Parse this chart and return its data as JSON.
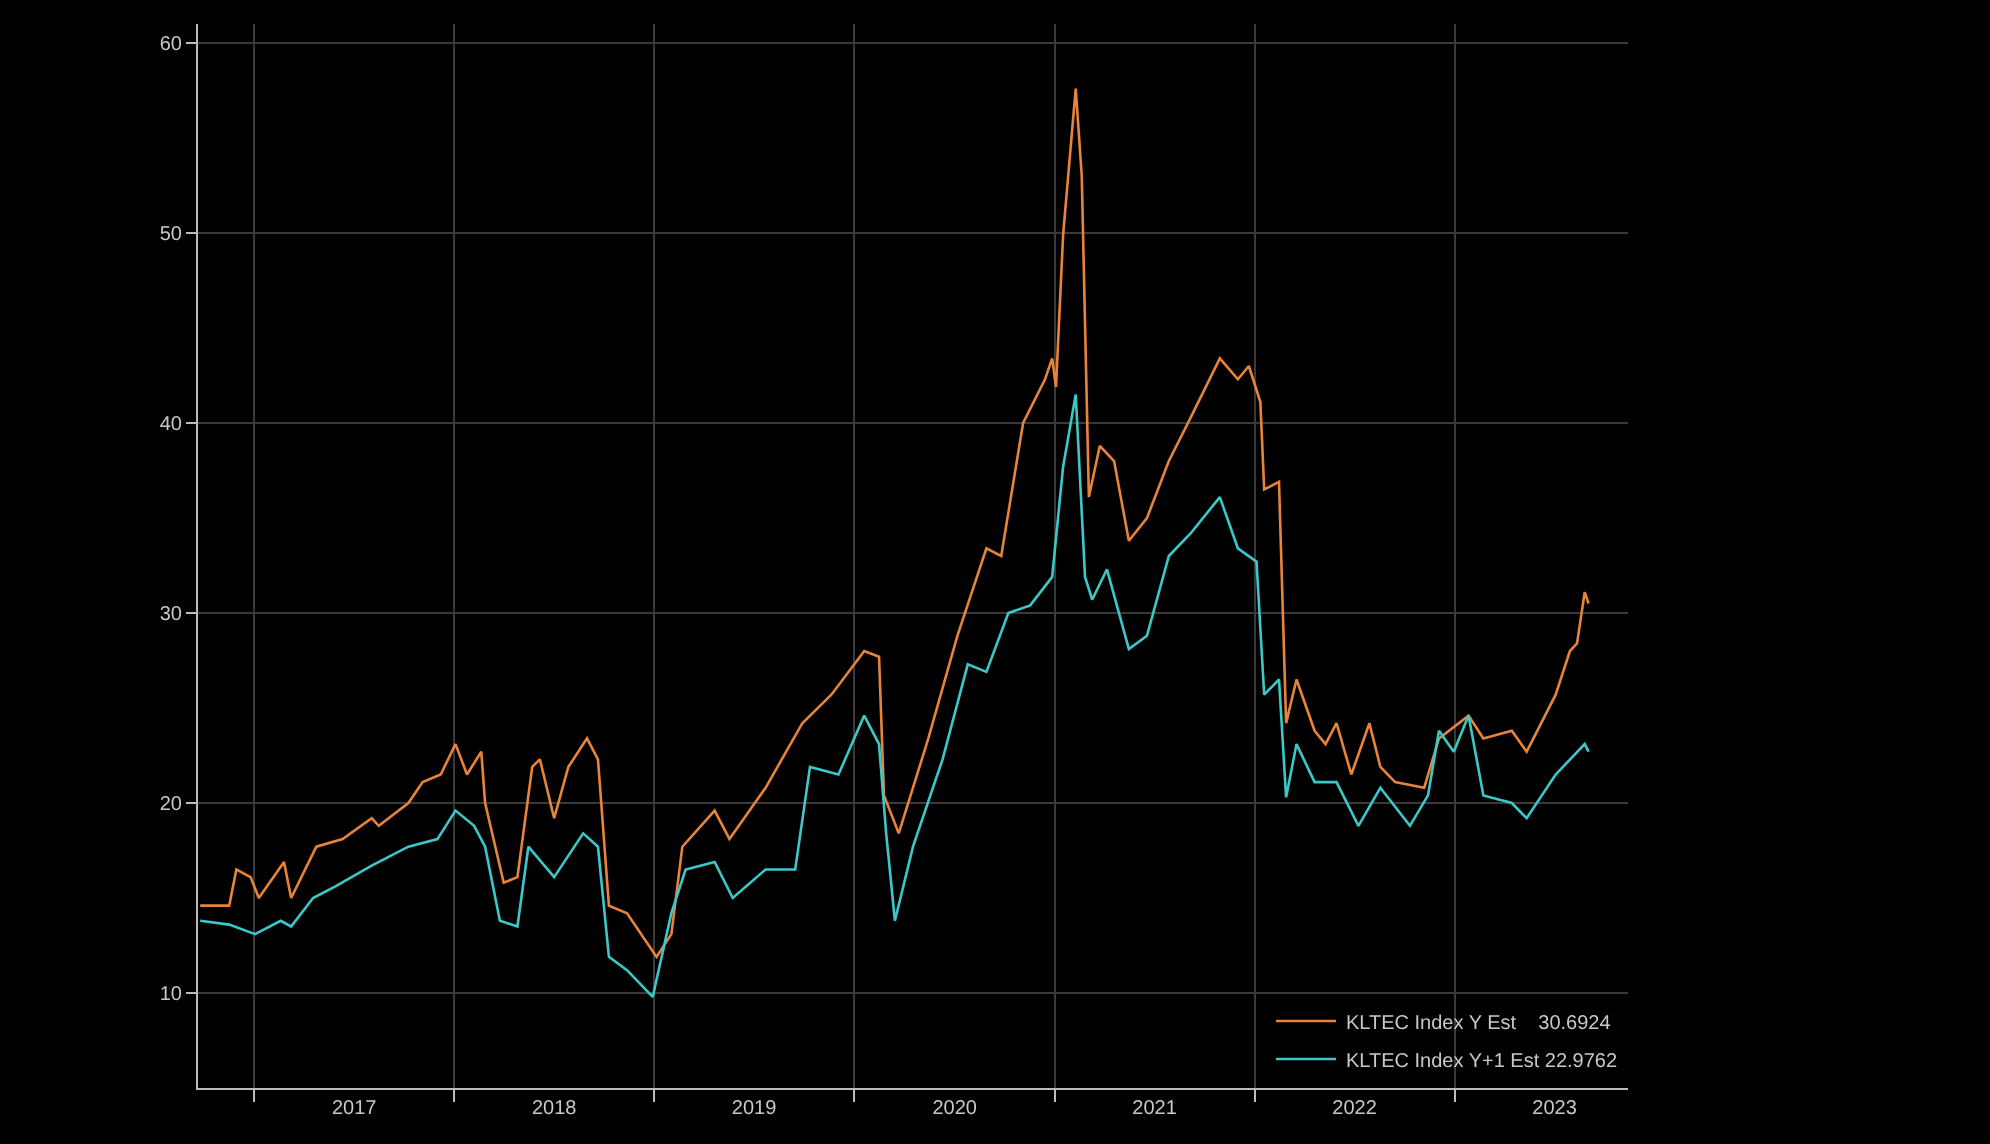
{
  "chart_data": {
    "type": "line",
    "xlim": [
      "2016-09-20",
      "2023-11-13"
    ],
    "ylim": [
      5,
      61
    ],
    "xticks": [
      {
        "value": "2017-01-01",
        "label": null
      },
      {
        "value": "2017-07-02",
        "label": "2017"
      },
      {
        "value": "2018-01-01",
        "label": null
      },
      {
        "value": "2018-07-02",
        "label": "2018"
      },
      {
        "value": "2019-01-01",
        "label": null
      },
      {
        "value": "2019-07-02",
        "label": "2019"
      },
      {
        "value": "2020-01-01",
        "label": null
      },
      {
        "value": "2020-07-02",
        "label": "2020"
      },
      {
        "value": "2021-01-01",
        "label": null
      },
      {
        "value": "2021-07-02",
        "label": "2021"
      },
      {
        "value": "2022-01-01",
        "label": null
      },
      {
        "value": "2022-07-02",
        "label": "2022"
      },
      {
        "value": "2023-01-01",
        "label": null
      },
      {
        "value": "2023-07-02",
        "label": "2023"
      }
    ],
    "yticks": [
      10,
      20,
      30,
      40,
      50,
      60
    ],
    "grid": true,
    "legend": "bottom right",
    "marker": "none",
    "line_style": "solid",
    "series": [
      {
        "name": "KLTEC Index Y Est    30.6924",
        "color": "#e8843a",
        "x": [
          "2016-09-24",
          "2016-11-16",
          "2016-11-29",
          "2016-12-25",
          "2017-01-09",
          "2017-02-24",
          "2017-03-09",
          "2017-04-24",
          "2017-06-11",
          "2017-08-03",
          "2017-08-16",
          "2017-10-09",
          "2017-11-04",
          "2017-12-07",
          "2018-01-03",
          "2018-01-24",
          "2018-02-19",
          "2018-02-26",
          "2018-04-01",
          "2018-04-26",
          "2018-05-23",
          "2018-06-06",
          "2018-07-02",
          "2018-07-28",
          "2018-08-31",
          "2018-09-20",
          "2018-10-10",
          "2018-11-12",
          "2019-01-05",
          "2019-02-01",
          "2019-02-21",
          "2019-04-21",
          "2019-05-18",
          "2019-07-23",
          "2019-09-28",
          "2019-11-20",
          "2020-01-19",
          "2020-02-15",
          "2020-02-24",
          "2020-03-22",
          "2020-05-15",
          "2020-07-07",
          "2020-08-29",
          "2020-09-25",
          "2020-11-04",
          "2020-12-14",
          "2020-12-27",
          "2021-01-03",
          "2021-01-16",
          "2021-02-08",
          "2021-02-19",
          "2021-03-04",
          "2021-03-24",
          "2021-04-19",
          "2021-05-16",
          "2021-06-18",
          "2021-07-28",
          "2021-09-06",
          "2021-10-29",
          "2021-12-01",
          "2021-12-21",
          "2022-01-11",
          "2022-01-18",
          "2022-02-14",
          "2022-02-27",
          "2022-03-18",
          "2022-04-20",
          "2022-05-10",
          "2022-05-30",
          "2022-06-26",
          "2022-07-29",
          "2022-08-18",
          "2022-09-14",
          "2022-11-06",
          "2022-12-03",
          "2023-01-26",
          "2023-02-22",
          "2023-04-15",
          "2023-05-12",
          "2023-07-04",
          "2023-07-30",
          "2023-08-12",
          "2023-08-26",
          "2023-09-02"
        ],
        "values": [
          14.6,
          14.6,
          16.5,
          16.1,
          15.0,
          16.9,
          15.0,
          17.7,
          18.1,
          19.2,
          18.8,
          20.0,
          21.1,
          21.5,
          23.1,
          21.5,
          22.7,
          20.0,
          15.8,
          16.1,
          21.9,
          22.3,
          19.2,
          21.9,
          23.4,
          22.3,
          14.6,
          14.2,
          11.9,
          13.1,
          17.7,
          19.6,
          18.1,
          20.8,
          24.2,
          25.7,
          28.0,
          27.7,
          20.4,
          18.4,
          23.4,
          28.8,
          33.4,
          33.0,
          40.0,
          42.3,
          43.4,
          41.9,
          49.9,
          57.6,
          53.0,
          36.1,
          38.8,
          38.0,
          33.8,
          35.0,
          38.0,
          40.3,
          43.4,
          42.3,
          43.0,
          41.1,
          36.5,
          36.9,
          24.2,
          26.5,
          23.8,
          23.1,
          24.2,
          21.5,
          24.2,
          21.9,
          21.1,
          20.8,
          23.4,
          24.6,
          23.4,
          23.8,
          22.7,
          25.7,
          28.0,
          28.4,
          31.1,
          30.5
        ]
      },
      {
        "name": "KLTEC Index Y+1 Est 22.9762",
        "color": "#3cc8c8",
        "x": [
          "2016-09-24",
          "2016-11-16",
          "2017-01-02",
          "2017-02-18",
          "2017-03-09",
          "2017-04-18",
          "2017-05-28",
          "2017-08-03",
          "2017-10-09",
          "2017-12-01",
          "2018-01-03",
          "2018-02-06",
          "2018-02-26",
          "2018-03-25",
          "2018-04-26",
          "2018-05-16",
          "2018-07-02",
          "2018-08-24",
          "2018-09-20",
          "2018-10-10",
          "2018-11-12",
          "2018-12-29",
          "2019-02-01",
          "2019-02-27",
          "2019-04-21",
          "2019-05-24",
          "2019-07-23",
          "2019-09-15",
          "2019-10-12",
          "2019-12-03",
          "2020-01-19",
          "2020-02-15",
          "2020-02-28",
          "2020-03-15",
          "2020-04-17",
          "2020-06-10",
          "2020-07-26",
          "2020-08-29",
          "2020-10-08",
          "2020-11-17",
          "2020-12-27",
          "2021-01-16",
          "2021-02-08",
          "2021-02-25",
          "2021-03-10",
          "2021-04-06",
          "2021-05-16",
          "2021-06-18",
          "2021-07-28",
          "2021-09-06",
          "2021-10-29",
          "2021-12-01",
          "2022-01-04",
          "2022-01-18",
          "2022-02-14",
          "2022-02-27",
          "2022-03-18",
          "2022-04-20",
          "2022-05-30",
          "2022-07-09",
          "2022-08-18",
          "2022-10-11",
          "2022-11-13",
          "2022-12-03",
          "2022-12-30",
          "2023-01-26",
          "2023-02-22",
          "2023-04-15",
          "2023-05-12",
          "2023-07-04",
          "2023-08-26",
          "2023-09-02"
        ],
        "values": [
          13.8,
          13.6,
          13.1,
          13.8,
          13.5,
          15.0,
          15.6,
          16.7,
          17.7,
          18.1,
          19.6,
          18.8,
          17.7,
          13.8,
          13.5,
          17.7,
          16.1,
          18.4,
          17.7,
          11.9,
          11.2,
          9.8,
          14.2,
          16.5,
          16.9,
          15.0,
          16.5,
          16.5,
          21.9,
          21.5,
          24.6,
          23.1,
          18.4,
          13.8,
          17.7,
          22.3,
          27.3,
          26.9,
          30.0,
          30.4,
          31.9,
          37.7,
          41.5,
          31.9,
          30.7,
          32.3,
          28.1,
          28.8,
          33.0,
          34.2,
          36.1,
          33.4,
          32.7,
          25.7,
          26.5,
          20.3,
          23.1,
          21.1,
          21.1,
          18.8,
          20.8,
          18.8,
          20.4,
          23.8,
          22.7,
          24.6,
          20.4,
          20.0,
          19.2,
          21.5,
          23.1,
          22.7
        ]
      }
    ]
  }
}
